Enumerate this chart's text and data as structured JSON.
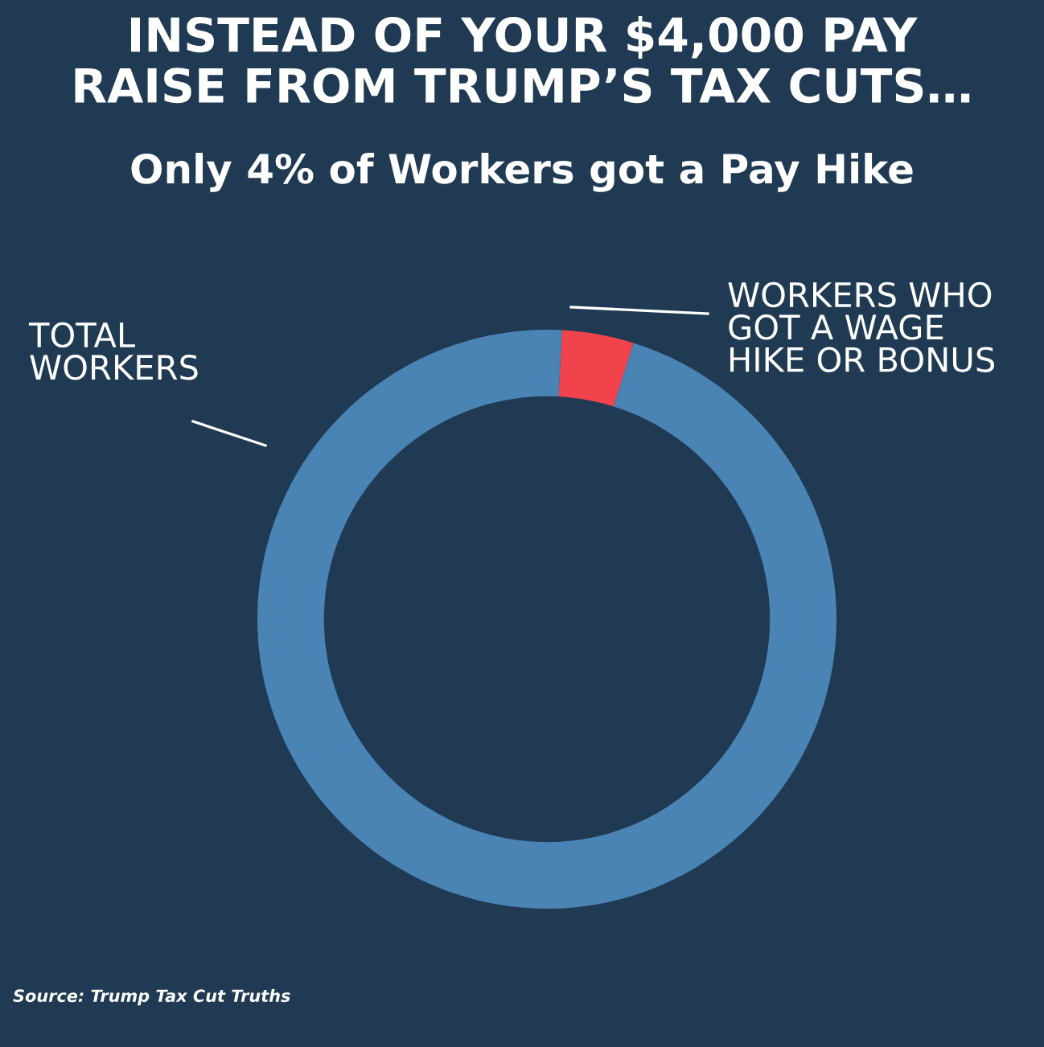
{
  "chart_data": {
    "type": "donut",
    "title": "INSTEAD OF YOUR $4,000 PAY\nRAISE FROM TRUMP’S TAX CUTS…",
    "subtitle": "Only 4% of Workers got a Pay Hike",
    "categories": [
      "WORKERS WHO\nGOT A WAGE\nHIKE OR BONUS",
      "TOTAL\nWORKERS"
    ],
    "values": [
      4,
      96
    ],
    "colors": [
      "#f0434b",
      "#4a84b4"
    ],
    "annotations": [
      "Source: Trump Tax Cut Truths"
    ]
  }
}
